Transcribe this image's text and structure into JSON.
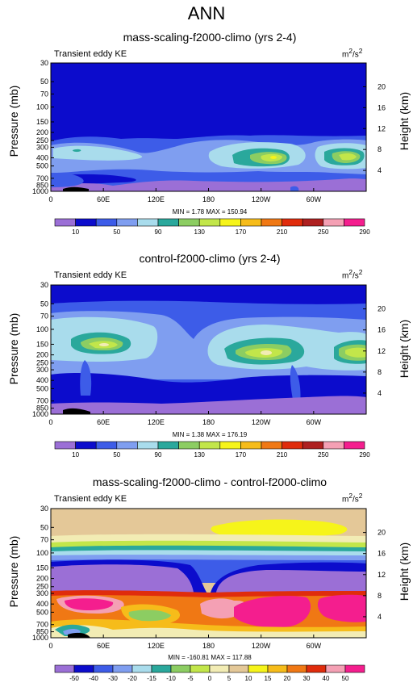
{
  "main_title": "ANN",
  "chart_data": [
    {
      "type": "heatmap",
      "title": "mass-scaling-f2000-climo (yrs 2-4)",
      "variable": "Transient eddy KE",
      "units": "m2/s2",
      "units_base": "m",
      "units_exp1": "2",
      "units_mid": "/s",
      "units_exp2": "2",
      "ylabel": "Pressure (mb)",
      "y2label": "Height (km)",
      "x_ticks": [
        "0",
        "60E",
        "120E",
        "180",
        "120W",
        "60W"
      ],
      "y_ticks": [
        "30",
        "50",
        "70",
        "100",
        "150",
        "200",
        "250",
        "300",
        "400",
        "500",
        "700",
        "850",
        "1000"
      ],
      "y2_ticks": [
        "20",
        "16",
        "12",
        "8",
        "4"
      ],
      "stats": "MIN =   1.78  MAX = 150.94",
      "min": 1.78,
      "max": 150.94,
      "colorbar_labels": [
        "10",
        "50",
        "90",
        "130",
        "170",
        "210",
        "250",
        "290"
      ],
      "colorbar_colors": [
        "#9b6fd6",
        "#0c0ccc",
        "#3d5ce8",
        "#7f9ef0",
        "#a9dcec",
        "#2aa89c",
        "#8ccd62",
        "#c2e64a",
        "#f6f41a",
        "#f6bc1a",
        "#f07814",
        "#e02c0c",
        "#ae2020",
        "#f4a0b4",
        "#f41e8e"
      ]
    },
    {
      "type": "heatmap",
      "title": "control-f2000-climo (yrs 2-4)",
      "variable": "Transient eddy KE",
      "units": "m2/s2",
      "units_base": "m",
      "units_exp1": "2",
      "units_mid": "/s",
      "units_exp2": "2",
      "ylabel": "Pressure (mb)",
      "y2label": "Height (km)",
      "x_ticks": [
        "0",
        "60E",
        "120E",
        "180",
        "120W",
        "60W"
      ],
      "y_ticks": [
        "30",
        "50",
        "70",
        "100",
        "150",
        "200",
        "250",
        "300",
        "400",
        "500",
        "700",
        "850",
        "1000"
      ],
      "y2_ticks": [
        "20",
        "16",
        "12",
        "8",
        "4"
      ],
      "stats": "MIN =   1.38  MAX = 176.19",
      "min": 1.38,
      "max": 176.19,
      "colorbar_labels": [
        "10",
        "50",
        "90",
        "130",
        "170",
        "210",
        "250",
        "290"
      ],
      "colorbar_colors": [
        "#9b6fd6",
        "#0c0ccc",
        "#3d5ce8",
        "#7f9ef0",
        "#a9dcec",
        "#2aa89c",
        "#8ccd62",
        "#c2e64a",
        "#f6f41a",
        "#f6bc1a",
        "#f07814",
        "#e02c0c",
        "#ae2020",
        "#f4a0b4",
        "#f41e8e"
      ]
    },
    {
      "type": "heatmap",
      "title": "mass-scaling-f2000-climo - control-f2000-climo",
      "variable": "Transient eddy KE",
      "units": "m2/s2",
      "units_base": "m",
      "units_exp1": "2",
      "units_mid": "/s",
      "units_exp2": "2",
      "ylabel": "Pressure (mb)",
      "y2label": "Height (km)",
      "x_ticks": [
        "0",
        "60E",
        "120E",
        "180",
        "120W",
        "60W"
      ],
      "y_ticks": [
        "30",
        "50",
        "70",
        "100",
        "150",
        "200",
        "250",
        "300",
        "400",
        "500",
        "700",
        "850",
        "1000"
      ],
      "y2_ticks": [
        "20",
        "16",
        "12",
        "8",
        "4"
      ],
      "stats": "MIN = -160.81  MAX = 117.88",
      "min": -160.81,
      "max": 117.88,
      "colorbar_labels": [
        "-50",
        "-40",
        "-30",
        "-20",
        "-15",
        "-10",
        "-5",
        "0",
        "5",
        "10",
        "15",
        "20",
        "30",
        "40",
        "50"
      ],
      "colorbar_colors": [
        "#9b6fd6",
        "#0c0ccc",
        "#3d5ce8",
        "#7f9ef0",
        "#a9dcec",
        "#2aa89c",
        "#8ccd62",
        "#c2e64a",
        "#f2ecb4",
        "#e4c898",
        "#f6f41a",
        "#f6bc1a",
        "#f07814",
        "#e02c0c",
        "#f4a0b4",
        "#f41e8e"
      ]
    }
  ]
}
